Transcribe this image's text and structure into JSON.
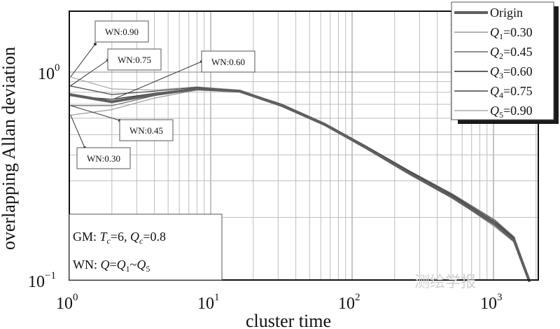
{
  "chart_data": {
    "type": "line",
    "xlabel": "cluster time",
    "ylabel": "overlapping Allan deviation",
    "xscale": "log",
    "yscale": "log",
    "xlim": [
      1,
      2000
    ],
    "ylim": [
      0.1,
      2
    ],
    "grid": true,
    "legend_position": "top-right",
    "x_ticks": [
      {
        "base": "10",
        "exp": "0"
      },
      {
        "base": "10",
        "exp": "1"
      },
      {
        "base": "10",
        "exp": "2"
      },
      {
        "base": "10",
        "exp": "3"
      }
    ],
    "y_ticks": [
      {
        "base": "10",
        "exp": "0"
      },
      {
        "base": "10",
        "exp": "−1"
      }
    ],
    "series": [
      {
        "name": "Origin",
        "legend": {
          "main": "Origin",
          "sub": "",
          "value": ""
        },
        "color": "#5f5f5f",
        "width": 4,
        "points": [
          [
            1,
            0.78
          ],
          [
            2,
            0.72
          ],
          [
            4,
            0.78
          ],
          [
            8,
            0.83
          ],
          [
            16,
            0.81
          ],
          [
            32,
            0.69
          ],
          [
            64,
            0.56
          ],
          [
            128,
            0.43
          ],
          [
            256,
            0.325
          ],
          [
            512,
            0.25
          ],
          [
            1024,
            0.185
          ],
          [
            1400,
            0.155
          ],
          [
            1800,
            0.098
          ]
        ]
      },
      {
        "name": "Q1=0.30",
        "legend": {
          "main": "Q",
          "sub": "1",
          "value": "=0.30"
        },
        "color": "#9a9a9a",
        "width": 1.2,
        "points": [
          [
            1,
            0.62
          ],
          [
            2,
            0.66
          ],
          [
            4,
            0.75
          ],
          [
            8,
            0.82
          ],
          [
            16,
            0.805
          ],
          [
            32,
            0.69
          ],
          [
            64,
            0.56
          ],
          [
            128,
            0.43
          ],
          [
            256,
            0.325
          ],
          [
            512,
            0.25
          ],
          [
            1024,
            0.18
          ],
          [
            1400,
            0.152
          ],
          [
            1800,
            0.098
          ]
        ]
      },
      {
        "name": "Q2=0.45",
        "legend": {
          "main": "Q",
          "sub": "2",
          "value": "=0.45"
        },
        "color": "#6a6a6a",
        "width": 1.2,
        "points": [
          [
            1,
            0.69
          ],
          [
            2,
            0.69
          ],
          [
            4,
            0.77
          ],
          [
            8,
            0.83
          ],
          [
            16,
            0.81
          ],
          [
            32,
            0.69
          ],
          [
            64,
            0.56
          ],
          [
            128,
            0.432
          ],
          [
            256,
            0.328
          ],
          [
            512,
            0.253
          ],
          [
            1024,
            0.186
          ],
          [
            1400,
            0.156
          ],
          [
            1800,
            0.098
          ]
        ]
      },
      {
        "name": "Q3=0.60",
        "legend": {
          "main": "Q",
          "sub": "3",
          "value": "=0.60"
        },
        "color": "#2e2e2e",
        "width": 1.2,
        "points": [
          [
            1,
            0.77
          ],
          [
            2,
            0.74
          ],
          [
            4,
            0.79
          ],
          [
            8,
            0.84
          ],
          [
            16,
            0.815
          ],
          [
            32,
            0.695
          ],
          [
            64,
            0.565
          ],
          [
            128,
            0.435
          ],
          [
            256,
            0.33
          ],
          [
            512,
            0.255
          ],
          [
            1024,
            0.19
          ],
          [
            1400,
            0.158
          ],
          [
            1800,
            0.099
          ]
        ]
      },
      {
        "name": "Q4=0.75",
        "legend": {
          "main": "Q",
          "sub": "4",
          "value": "=0.75"
        },
        "color": "#444444",
        "width": 1.2,
        "points": [
          [
            1,
            0.86
          ],
          [
            2,
            0.78
          ],
          [
            4,
            0.81
          ],
          [
            8,
            0.845
          ],
          [
            16,
            0.815
          ],
          [
            32,
            0.7
          ],
          [
            64,
            0.567
          ],
          [
            128,
            0.437
          ],
          [
            256,
            0.333
          ],
          [
            512,
            0.258
          ],
          [
            1024,
            0.193
          ],
          [
            1400,
            0.16
          ],
          [
            1800,
            0.099
          ]
        ]
      },
      {
        "name": "Q5=0.90",
        "legend": {
          "main": "Q",
          "sub": "5",
          "value": "=0.90"
        },
        "color": "#a8a8a8",
        "width": 1.2,
        "points": [
          [
            1,
            0.95
          ],
          [
            2,
            0.83
          ],
          [
            4,
            0.82
          ],
          [
            8,
            0.85
          ],
          [
            16,
            0.82
          ],
          [
            32,
            0.7
          ],
          [
            64,
            0.568
          ],
          [
            128,
            0.438
          ],
          [
            256,
            0.335
          ],
          [
            512,
            0.26
          ],
          [
            1024,
            0.195
          ],
          [
            1400,
            0.162
          ],
          [
            1800,
            0.1
          ]
        ]
      }
    ],
    "annotations": [
      {
        "text": "WN:0.90",
        "series": 5,
        "target_x": 1.0
      },
      {
        "text": "WN:0.75",
        "series": 4,
        "target_x": 1.0
      },
      {
        "text": "WN:0.60",
        "series": 3,
        "target_x": 2.0
      },
      {
        "text": "WN:0.45",
        "series": 2,
        "target_x": 1.0
      },
      {
        "text": "WN:0.30",
        "series": 1,
        "target_x": 1.0
      }
    ],
    "info_box": {
      "gm": {
        "prefix": "GM: ",
        "tc_main": "T",
        "tc_sub": "c",
        "tc_value": "=6, ",
        "qc_main": "Q",
        "qc_sub": "c",
        "qc_value": "=0.8"
      },
      "wn": {
        "prefix": "WN: ",
        "q": "Q",
        "eq": "=",
        "q1_main": "Q",
        "q1_sub": "1",
        "tilde": "~",
        "q5_main": "Q",
        "q5_sub": "5"
      }
    }
  },
  "watermark": "测绘学报"
}
